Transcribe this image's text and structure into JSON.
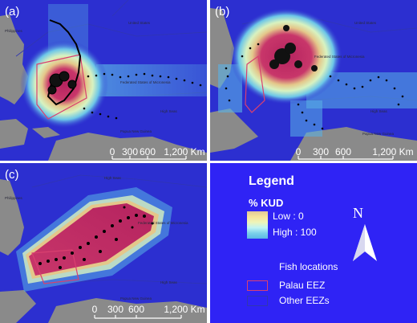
{
  "panels": [
    {
      "label": "(a)",
      "eez_text": "Federated States of Micronesia",
      "scale_ticks": [
        "0",
        "300",
        "600",
        "1,200 Km"
      ]
    },
    {
      "label": "(b)",
      "eez_text": "Federated States of Micronesia",
      "scale_ticks": [
        "0",
        "300",
        "600",
        "1,200 Km"
      ]
    },
    {
      "label": "(c)",
      "eez_text": "Federated States of Micronesia",
      "scale_ticks": [
        "0",
        "300",
        "600",
        "1,200 Km"
      ]
    }
  ],
  "map_labels": {
    "high_seas": "High Seas",
    "philippines": "Philippines",
    "png": "Papua New Guinea",
    "us": "United States",
    "indonesia": "Indonesia",
    "japan": "Japan"
  },
  "legend": {
    "title": "Legend",
    "kud_title": "% KUD",
    "low_label": "Low : 0",
    "high_label": "High : 100",
    "fish_label": "Fish locations",
    "palau_label": "Palau EEZ",
    "other_label": "Other EEZs",
    "north_label": "N"
  },
  "colors": {
    "ocean": "#2c2fd0",
    "legend_bg": "#2f23f5",
    "palau_eez": "#d94070",
    "other_eez": "#3136b0",
    "land": "#808080"
  }
}
